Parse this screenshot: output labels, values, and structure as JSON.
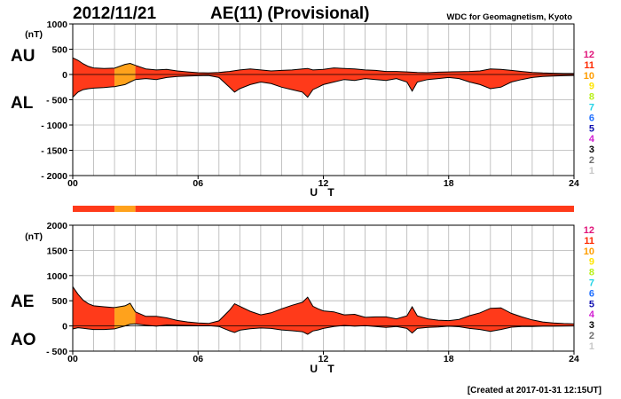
{
  "header": {
    "date": "2012/11/21",
    "title": "AE(11) (Provisional)",
    "source": "WDC for Geomagnetism, Kyoto"
  },
  "footer": {
    "created": "[Created at 2017-01-31 12:15UT]"
  },
  "colors": {
    "fill_main": "#ff3a1a",
    "fill_highlight": "#ffa21c",
    "line": "#000000",
    "grid": "#b4b4b4",
    "bar_main": "#ff3a1a",
    "bar_highlight": "#ffa21c"
  },
  "scale": {
    "items": [
      {
        "label": "12",
        "color": "#e0157a"
      },
      {
        "label": "11",
        "color": "#ff2a00"
      },
      {
        "label": "10",
        "color": "#ff9d00"
      },
      {
        "label": "9",
        "color": "#ffe500"
      },
      {
        "label": "8",
        "color": "#b9f01a"
      },
      {
        "label": "7",
        "color": "#24d3e6"
      },
      {
        "label": "6",
        "color": "#1f6fff"
      },
      {
        "label": "5",
        "color": "#1010b0"
      },
      {
        "label": "4",
        "color": "#d21fd2"
      },
      {
        "label": "3",
        "color": "#000000"
      },
      {
        "label": "2",
        "color": "#6e6e6e"
      },
      {
        "label": "1",
        "color": "#c8c8c8"
      }
    ]
  },
  "chart_data": [
    {
      "type": "area",
      "name": "AU/AL panel",
      "labels": {
        "upper": "AU",
        "lower": "AL",
        "unit": "(nT)",
        "xlabel": "U T"
      },
      "ylim": [
        -2000,
        1000
      ],
      "y_ticks": [
        1000,
        500,
        0,
        -500,
        -1000,
        -1500,
        -2000
      ],
      "y_tick_labels": [
        "1000",
        "500",
        "0",
        "- 500",
        "- 1000",
        "- 1500",
        "- 2000"
      ],
      "xlim": [
        0,
        24
      ],
      "x_ticks": [
        0,
        6,
        12,
        18,
        24
      ],
      "x_tick_labels": [
        "00",
        "06",
        "12",
        "18",
        "24"
      ],
      "grid": true,
      "highlight_hours": [
        2,
        3
      ],
      "series": [
        {
          "name": "AU",
          "x": [
            0,
            0.25,
            0.5,
            0.75,
            1,
            1.5,
            2,
            2.5,
            2.75,
            3,
            3.5,
            4,
            4.5,
            5,
            5.5,
            6,
            6.5,
            7,
            7.5,
            8,
            8.5,
            9,
            9.5,
            10,
            10.5,
            11,
            11.25,
            11.5,
            12,
            12.5,
            13,
            13.5,
            14,
            14.5,
            15,
            15.5,
            16,
            16.5,
            17,
            17.5,
            18,
            18.5,
            19,
            19.5,
            20,
            20.5,
            21,
            21.5,
            22,
            22.5,
            23,
            23.5,
            24
          ],
          "values": [
            330,
            280,
            210,
            160,
            130,
            120,
            125,
            200,
            220,
            180,
            110,
            90,
            100,
            70,
            50,
            35,
            30,
            40,
            60,
            90,
            110,
            90,
            70,
            80,
            90,
            110,
            120,
            90,
            100,
            130,
            120,
            110,
            90,
            80,
            60,
            60,
            50,
            40,
            35,
            45,
            50,
            55,
            60,
            70,
            110,
            100,
            80,
            60,
            40,
            30,
            25,
            20,
            20
          ]
        },
        {
          "name": "AL",
          "x": [
            0,
            0.25,
            0.5,
            0.75,
            1,
            1.5,
            2,
            2.5,
            2.75,
            3,
            3.5,
            4,
            4.5,
            5,
            5.5,
            6,
            6.5,
            7,
            7.5,
            7.75,
            8,
            8.5,
            9,
            9.5,
            10,
            10.5,
            11,
            11.25,
            11.5,
            11.75,
            12,
            12.5,
            13,
            13.5,
            14,
            14.5,
            15,
            15.5,
            16,
            16.25,
            16.5,
            17,
            17.5,
            18,
            18.5,
            19,
            19.5,
            20,
            20.5,
            21,
            21.5,
            22,
            22.5,
            23,
            23.5,
            24
          ],
          "values": [
            -450,
            -350,
            -300,
            -280,
            -270,
            -260,
            -240,
            -200,
            -150,
            -100,
            -80,
            -100,
            -60,
            -40,
            -30,
            -25,
            -20,
            -60,
            -250,
            -350,
            -280,
            -200,
            -150,
            -180,
            -250,
            -300,
            -350,
            -450,
            -300,
            -250,
            -200,
            -150,
            -100,
            -120,
            -80,
            -100,
            -120,
            -80,
            -150,
            -330,
            -150,
            -100,
            -80,
            -60,
            -80,
            -150,
            -200,
            -280,
            -250,
            -150,
            -100,
            -60,
            -40,
            -30,
            -25,
            -20
          ]
        }
      ]
    },
    {
      "type": "area",
      "name": "AE/AO panel",
      "labels": {
        "upper": "AE",
        "lower": "AO",
        "unit": "(nT)",
        "xlabel": "U T"
      },
      "ylim": [
        -500,
        2000
      ],
      "y_ticks": [
        2000,
        1500,
        1000,
        500,
        0,
        -500
      ],
      "y_tick_labels": [
        "2000",
        "1500",
        "1000",
        "500",
        "0",
        "- 500"
      ],
      "xlim": [
        0,
        24
      ],
      "x_ticks": [
        0,
        6,
        12,
        18,
        24
      ],
      "x_tick_labels": [
        "00",
        "06",
        "12",
        "18",
        "24"
      ],
      "grid": true,
      "highlight_hours": [
        2,
        3
      ],
      "series": [
        {
          "name": "AE",
          "x": [
            0,
            0.25,
            0.5,
            0.75,
            1,
            1.5,
            2,
            2.5,
            2.75,
            3,
            3.5,
            4,
            4.5,
            5,
            5.5,
            6,
            6.5,
            7,
            7.5,
            7.75,
            8,
            8.5,
            9,
            9.5,
            10,
            10.5,
            11,
            11.25,
            11.5,
            11.75,
            12,
            12.5,
            13,
            13.5,
            14,
            14.5,
            15,
            15.5,
            16,
            16.25,
            16.5,
            17,
            17.5,
            18,
            18.5,
            19,
            19.5,
            20,
            20.5,
            21,
            21.5,
            22,
            22.5,
            23,
            23.5,
            24
          ],
          "values": [
            780,
            630,
            510,
            440,
            400,
            380,
            365,
            400,
            450,
            280,
            190,
            190,
            160,
            110,
            80,
            60,
            50,
            100,
            310,
            440,
            390,
            290,
            220,
            260,
            340,
            410,
            470,
            570,
            390,
            340,
            300,
            280,
            220,
            230,
            170,
            180,
            180,
            140,
            200,
            380,
            200,
            140,
            115,
            105,
            130,
            205,
            260,
            350,
            360,
            250,
            180,
            120,
            80,
            60,
            48,
            40
          ]
        },
        {
          "name": "AO",
          "x": [
            0,
            0.25,
            0.5,
            0.75,
            1,
            1.5,
            2,
            2.5,
            2.75,
            3,
            3.5,
            4,
            4.5,
            5,
            5.5,
            6,
            6.5,
            7,
            7.5,
            7.75,
            8,
            8.5,
            9,
            9.5,
            10,
            10.5,
            11,
            11.25,
            11.5,
            11.75,
            12,
            12.5,
            13,
            13.5,
            14,
            14.5,
            15,
            15.5,
            16,
            16.25,
            16.5,
            17,
            17.5,
            18,
            18.5,
            19,
            19.5,
            20,
            20.5,
            21,
            21.5,
            22,
            22.5,
            23,
            23.5,
            24
          ],
          "values": [
            -60,
            -35,
            -45,
            -60,
            -70,
            -70,
            -58,
            0,
            35,
            40,
            15,
            -5,
            20,
            15,
            10,
            5,
            5,
            -10,
            -95,
            -130,
            -85,
            -55,
            -40,
            -50,
            -80,
            -95,
            -115,
            -165,
            -100,
            -80,
            -50,
            -10,
            10,
            -5,
            5,
            -10,
            -30,
            -10,
            -50,
            -140,
            -50,
            -30,
            -22,
            -5,
            -15,
            -50,
            -70,
            -110,
            -70,
            -25,
            -10,
            -10,
            -5,
            -5,
            -3,
            0
          ]
        }
      ]
    }
  ]
}
